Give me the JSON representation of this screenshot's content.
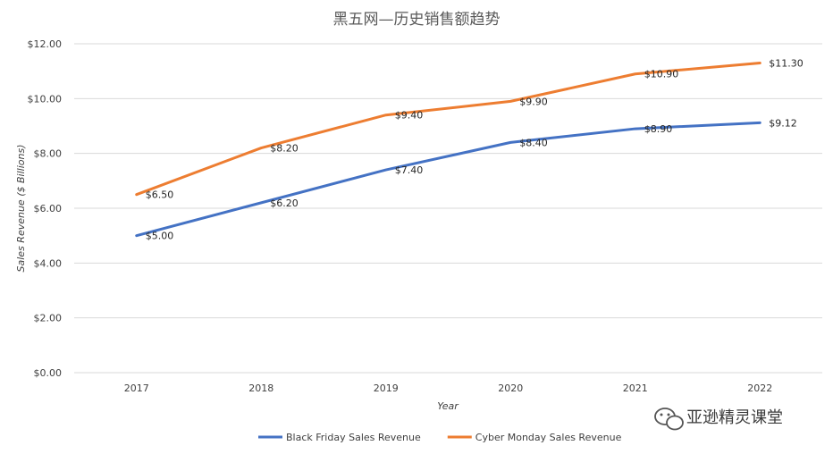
{
  "chart_data": {
    "type": "line",
    "title": "黑五网—历史销售额趋势",
    "xlabel": "Year",
    "ylabel": "Sales Revenue ($ Billions)",
    "categories": [
      "2017",
      "2018",
      "2019",
      "2020",
      "2021",
      "2022"
    ],
    "ylim": [
      0,
      12
    ],
    "yticks": [
      0,
      2,
      4,
      6,
      8,
      10,
      12
    ],
    "ytick_labels": [
      "$0.00",
      "$2.00",
      "$4.00",
      "$6.00",
      "$8.00",
      "$10.00",
      "$12.00"
    ],
    "grid": true,
    "legend_position": "bottom",
    "series": [
      {
        "name": "Black Friday Sales Revenue",
        "color": "#4472C4",
        "values": [
          5.0,
          6.2,
          7.4,
          8.4,
          8.9,
          9.12
        ],
        "labels": [
          "$5.00",
          "$6.20",
          "$7.40",
          "$8.40",
          "$8.90",
          "$9.12"
        ]
      },
      {
        "name": "Cyber Monday Sales Revenue",
        "color": "#ED7D31",
        "values": [
          6.5,
          8.2,
          9.4,
          9.9,
          10.9,
          11.3
        ],
        "labels": [
          "$6.50",
          "$8.20",
          "$9.40",
          "$9.90",
          "$10.90",
          "$11.30"
        ]
      }
    ]
  },
  "watermark": {
    "icon": "wechat-icon",
    "text": "亚逊精灵课堂"
  }
}
